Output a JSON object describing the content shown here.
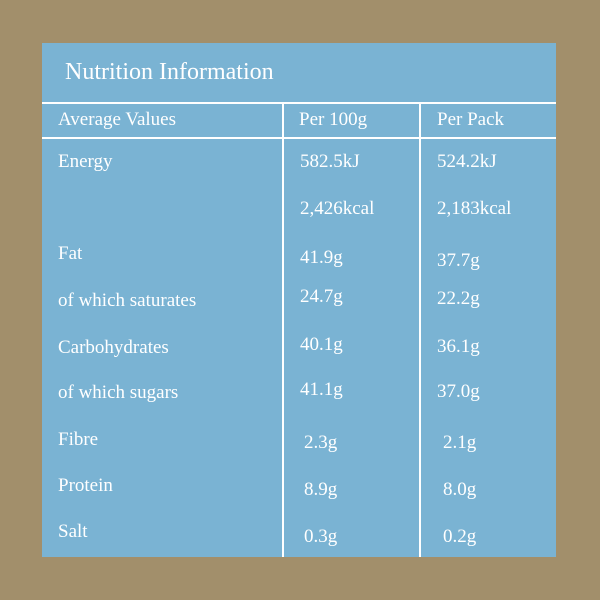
{
  "title": "Nutrition Information",
  "columns": [
    "Average Values",
    "Per 100g",
    "Per Pack"
  ],
  "rows": [
    {
      "label": "Energy",
      "per100": "582.5kJ",
      "perPack": "524.2kJ"
    },
    {
      "label": "",
      "per100": "2,426kcal",
      "perPack": "2,183kcal"
    },
    {
      "label": "Fat",
      "per100": "41.9g",
      "perPack": "37.7g"
    },
    {
      "label": "of which saturates",
      "per100": "24.7g",
      "perPack": "22.2g"
    },
    {
      "label": "Carbohydrates",
      "per100": "40.1g",
      "perPack": "36.1g"
    },
    {
      "label": "of which sugars",
      "per100": "41.1g",
      "perPack": "37.0g"
    },
    {
      "label": "Fibre",
      "per100": "2.3g",
      "perPack": "2.1g"
    },
    {
      "label": "Protein",
      "per100": "8.9g",
      "perPack": "8.0g"
    },
    {
      "label": "Salt",
      "per100": "0.3g",
      "perPack": "0.2g"
    }
  ],
  "colors": {
    "background": "#a28f6b",
    "panel": "#7ab3d3",
    "text": "#ffffff"
  }
}
